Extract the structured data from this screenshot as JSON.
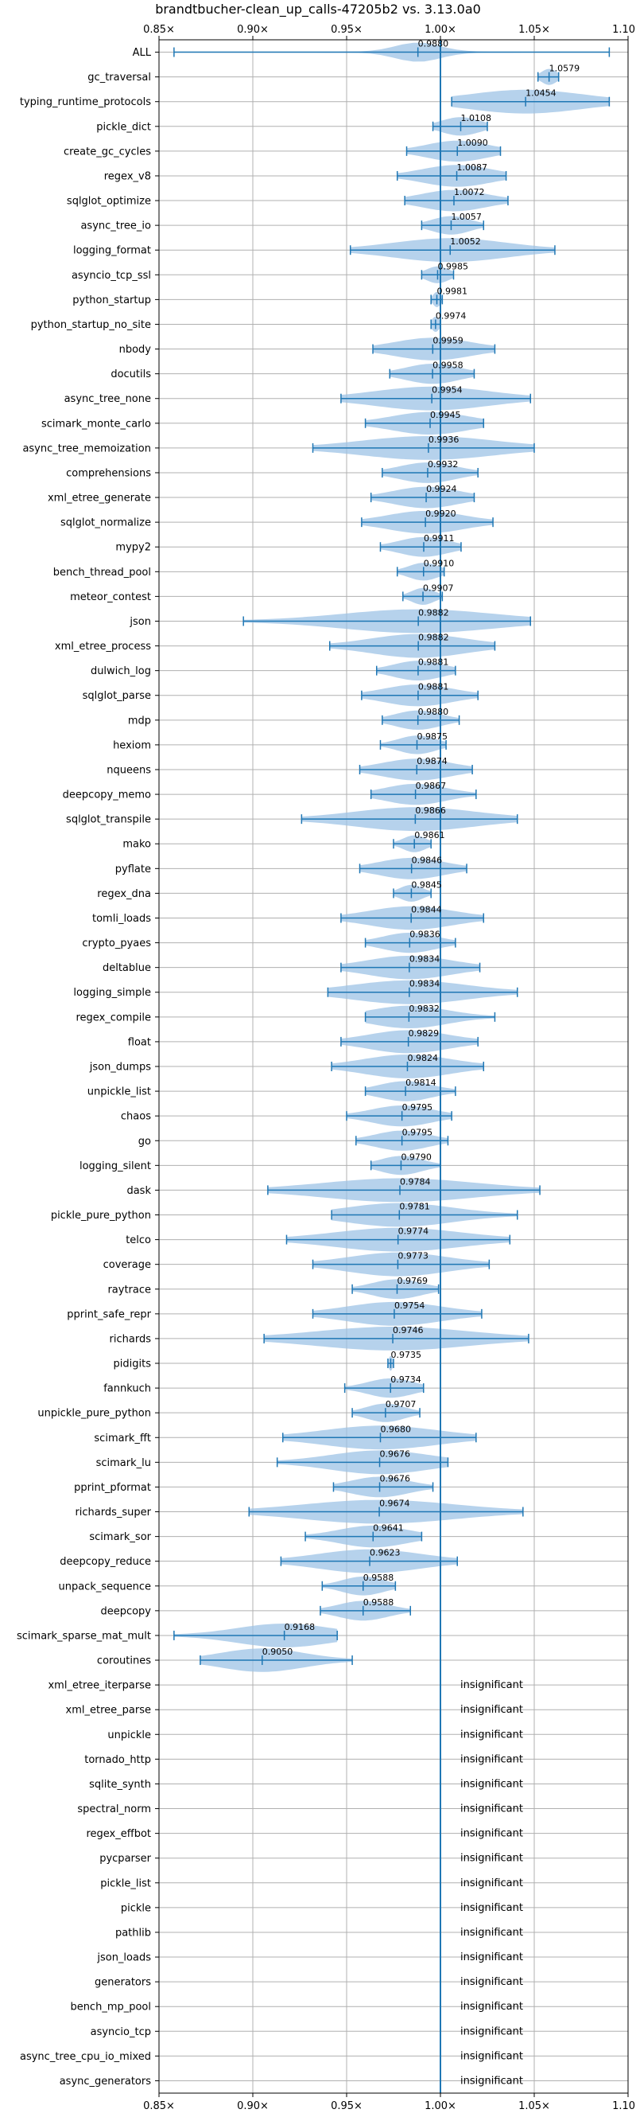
{
  "chart_data": {
    "type": "violin",
    "title": "brandtbucher-clean_up_calls-47205b2 vs. 3.13.0a0",
    "xlim": [
      0.85,
      1.1
    ],
    "xticks": [
      "0.85×",
      "0.90×",
      "0.95×",
      "1.00×",
      "1.05×",
      "1.10×"
    ],
    "xtick_values": [
      0.85,
      0.9,
      0.95,
      1.0,
      1.05,
      1.1
    ],
    "reference_line": 1.0,
    "grid": true,
    "colors": {
      "violin": "#9ec3e6",
      "whisker": "#1f77b4",
      "reference": "#1f77b4",
      "grid": "#b0b0b0"
    },
    "insignificant_label": "insignificant",
    "benchmarks": [
      {
        "name": "ALL",
        "value": 0.988,
        "label": "0.9880",
        "min": 0.858,
        "max": 1.09,
        "spread": 0.012
      },
      {
        "name": "gc_traversal",
        "value": 1.0579,
        "label": "1.0579",
        "min": 1.052,
        "max": 1.063,
        "spread": 0.004
      },
      {
        "name": "typing_runtime_protocols",
        "value": 1.0454,
        "label": "1.0454",
        "min": 1.006,
        "max": 1.09,
        "spread": 0.03
      },
      {
        "name": "pickle_dict",
        "value": 1.0108,
        "label": "1.0108",
        "min": 0.996,
        "max": 1.025,
        "spread": 0.01
      },
      {
        "name": "create_gc_cycles",
        "value": 1.009,
        "label": "1.0090",
        "min": 0.982,
        "max": 1.032,
        "spread": 0.016
      },
      {
        "name": "regex_v8",
        "value": 1.0087,
        "label": "1.0087",
        "min": 0.977,
        "max": 1.035,
        "spread": 0.018
      },
      {
        "name": "sqlglot_optimize",
        "value": 1.0072,
        "label": "1.0072",
        "min": 0.981,
        "max": 1.036,
        "spread": 0.017
      },
      {
        "name": "async_tree_io",
        "value": 1.0057,
        "label": "1.0057",
        "min": 0.99,
        "max": 1.023,
        "spread": 0.01
      },
      {
        "name": "logging_format",
        "value": 1.0052,
        "label": "1.0052",
        "min": 0.952,
        "max": 1.061,
        "spread": 0.03
      },
      {
        "name": "asyncio_tcp_ssl",
        "value": 0.9985,
        "label": "0.9985",
        "min": 0.99,
        "max": 1.007,
        "spread": 0.006
      },
      {
        "name": "python_startup",
        "value": 0.9981,
        "label": "0.9981",
        "min": 0.995,
        "max": 1.001,
        "spread": 0.002
      },
      {
        "name": "python_startup_no_site",
        "value": 0.9974,
        "label": "0.9974",
        "min": 0.995,
        "max": 1.0,
        "spread": 0.002
      },
      {
        "name": "nbody",
        "value": 0.9959,
        "label": "0.9959",
        "min": 0.964,
        "max": 1.029,
        "spread": 0.02
      },
      {
        "name": "docutils",
        "value": 0.9958,
        "label": "0.9958",
        "min": 0.973,
        "max": 1.018,
        "spread": 0.014
      },
      {
        "name": "async_tree_none",
        "value": 0.9954,
        "label": "0.9954",
        "min": 0.947,
        "max": 1.048,
        "spread": 0.03
      },
      {
        "name": "scimark_monte_carlo",
        "value": 0.9945,
        "label": "0.9945",
        "min": 0.96,
        "max": 1.023,
        "spread": 0.02
      },
      {
        "name": "async_tree_memoization",
        "value": 0.9936,
        "label": "0.9936",
        "min": 0.932,
        "max": 1.05,
        "spread": 0.035
      },
      {
        "name": "comprehensions",
        "value": 0.9932,
        "label": "0.9932",
        "min": 0.969,
        "max": 1.02,
        "spread": 0.015
      },
      {
        "name": "xml_etree_generate",
        "value": 0.9924,
        "label": "0.9924",
        "min": 0.963,
        "max": 1.018,
        "spread": 0.017
      },
      {
        "name": "sqlglot_normalize",
        "value": 0.992,
        "label": "0.9920",
        "min": 0.958,
        "max": 1.028,
        "spread": 0.02
      },
      {
        "name": "mypy2",
        "value": 0.9911,
        "label": "0.9911",
        "min": 0.968,
        "max": 1.011,
        "spread": 0.013
      },
      {
        "name": "bench_thread_pool",
        "value": 0.991,
        "label": "0.9910",
        "min": 0.977,
        "max": 1.002,
        "spread": 0.008
      },
      {
        "name": "meteor_contest",
        "value": 0.9907,
        "label": "0.9907",
        "min": 0.98,
        "max": 1.001,
        "spread": 0.006
      },
      {
        "name": "json",
        "value": 0.9882,
        "label": "0.9882",
        "min": 0.895,
        "max": 1.048,
        "spread": 0.04
      },
      {
        "name": "xml_etree_process",
        "value": 0.9882,
        "label": "0.9882",
        "min": 0.941,
        "max": 1.029,
        "spread": 0.025
      },
      {
        "name": "dulwich_log",
        "value": 0.9881,
        "label": "0.9881",
        "min": 0.966,
        "max": 1.008,
        "spread": 0.013
      },
      {
        "name": "sqlglot_parse",
        "value": 0.9881,
        "label": "0.9881",
        "min": 0.958,
        "max": 1.02,
        "spread": 0.018
      },
      {
        "name": "mdp",
        "value": 0.988,
        "label": "0.9880",
        "min": 0.969,
        "max": 1.01,
        "spread": 0.012
      },
      {
        "name": "hexiom",
        "value": 0.9875,
        "label": "0.9875",
        "min": 0.968,
        "max": 1.003,
        "spread": 0.01
      },
      {
        "name": "nqueens",
        "value": 0.9874,
        "label": "0.9874",
        "min": 0.957,
        "max": 1.017,
        "spread": 0.018
      },
      {
        "name": "deepcopy_memo",
        "value": 0.9867,
        "label": "0.9867",
        "min": 0.963,
        "max": 1.019,
        "spread": 0.016
      },
      {
        "name": "sqlglot_transpile",
        "value": 0.9866,
        "label": "0.9866",
        "min": 0.926,
        "max": 1.041,
        "spread": 0.032
      },
      {
        "name": "mako",
        "value": 0.9861,
        "label": "0.9861",
        "min": 0.975,
        "max": 0.995,
        "spread": 0.006
      },
      {
        "name": "pyflate",
        "value": 0.9846,
        "label": "0.9846",
        "min": 0.957,
        "max": 1.014,
        "spread": 0.017
      },
      {
        "name": "regex_dna",
        "value": 0.9845,
        "label": "0.9845",
        "min": 0.975,
        "max": 0.995,
        "spread": 0.006
      },
      {
        "name": "tomli_loads",
        "value": 0.9844,
        "label": "0.9844",
        "min": 0.947,
        "max": 1.023,
        "spread": 0.022
      },
      {
        "name": "crypto_pyaes",
        "value": 0.9836,
        "label": "0.9836",
        "min": 0.96,
        "max": 1.008,
        "spread": 0.014
      },
      {
        "name": "deltablue",
        "value": 0.9834,
        "label": "0.9834",
        "min": 0.947,
        "max": 1.021,
        "spread": 0.022
      },
      {
        "name": "logging_simple",
        "value": 0.9834,
        "label": "0.9834",
        "min": 0.94,
        "max": 1.041,
        "spread": 0.03
      },
      {
        "name": "regex_compile",
        "value": 0.9832,
        "label": "0.9832",
        "min": 0.96,
        "max": 1.029,
        "spread": 0.02
      },
      {
        "name": "float",
        "value": 0.9829,
        "label": "0.9829",
        "min": 0.947,
        "max": 1.02,
        "spread": 0.021
      },
      {
        "name": "json_dumps",
        "value": 0.9824,
        "label": "0.9824",
        "min": 0.942,
        "max": 1.023,
        "spread": 0.023
      },
      {
        "name": "unpickle_list",
        "value": 0.9814,
        "label": "0.9814",
        "min": 0.96,
        "max": 1.008,
        "spread": 0.014
      },
      {
        "name": "chaos",
        "value": 0.9795,
        "label": "0.9795",
        "min": 0.95,
        "max": 1.006,
        "spread": 0.016
      },
      {
        "name": "go",
        "value": 0.9795,
        "label": "0.9795",
        "min": 0.955,
        "max": 1.004,
        "spread": 0.014
      },
      {
        "name": "logging_silent",
        "value": 0.979,
        "label": "0.9790",
        "min": 0.963,
        "max": 1.0,
        "spread": 0.011
      },
      {
        "name": "dask",
        "value": 0.9784,
        "label": "0.9784",
        "min": 0.908,
        "max": 1.053,
        "spread": 0.04
      },
      {
        "name": "pickle_pure_python",
        "value": 0.9781,
        "label": "0.9781",
        "min": 0.942,
        "max": 1.041,
        "spread": 0.028
      },
      {
        "name": "telco",
        "value": 0.9774,
        "label": "0.9774",
        "min": 0.918,
        "max": 1.037,
        "spread": 0.033
      },
      {
        "name": "coverage",
        "value": 0.9773,
        "label": "0.9773",
        "min": 0.932,
        "max": 1.026,
        "spread": 0.026
      },
      {
        "name": "raytrace",
        "value": 0.9769,
        "label": "0.9769",
        "min": 0.953,
        "max": 0.999,
        "spread": 0.013
      },
      {
        "name": "pprint_safe_repr",
        "value": 0.9754,
        "label": "0.9754",
        "min": 0.932,
        "max": 1.022,
        "spread": 0.025
      },
      {
        "name": "richards",
        "value": 0.9746,
        "label": "0.9746",
        "min": 0.906,
        "max": 1.047,
        "spread": 0.04
      },
      {
        "name": "pidigits",
        "value": 0.9735,
        "label": "0.9735",
        "min": 0.972,
        "max": 0.975,
        "spread": 0.001
      },
      {
        "name": "fannkuch",
        "value": 0.9734,
        "label": "0.9734",
        "min": 0.949,
        "max": 0.991,
        "spread": 0.012
      },
      {
        "name": "unpickle_pure_python",
        "value": 0.9707,
        "label": "0.9707",
        "min": 0.953,
        "max": 0.989,
        "spread": 0.01
      },
      {
        "name": "scimark_fft",
        "value": 0.968,
        "label": "0.9680",
        "min": 0.916,
        "max": 1.019,
        "spread": 0.03
      },
      {
        "name": "scimark_lu",
        "value": 0.9676,
        "label": "0.9676",
        "min": 0.913,
        "max": 1.004,
        "spread": 0.026
      },
      {
        "name": "pprint_pformat",
        "value": 0.9676,
        "label": "0.9676",
        "min": 0.943,
        "max": 0.996,
        "spread": 0.015
      },
      {
        "name": "richards_super",
        "value": 0.9674,
        "label": "0.9674",
        "min": 0.898,
        "max": 1.044,
        "spread": 0.04
      },
      {
        "name": "scimark_sor",
        "value": 0.9641,
        "label": "0.9641",
        "min": 0.928,
        "max": 0.99,
        "spread": 0.018
      },
      {
        "name": "deepcopy_reduce",
        "value": 0.9623,
        "label": "0.9623",
        "min": 0.915,
        "max": 1.009,
        "spread": 0.027
      },
      {
        "name": "unpack_sequence",
        "value": 0.9588,
        "label": "0.9588",
        "min": 0.937,
        "max": 0.976,
        "spread": 0.011
      },
      {
        "name": "deepcopy",
        "value": 0.9588,
        "label": "0.9588",
        "min": 0.936,
        "max": 0.984,
        "spread": 0.013
      },
      {
        "name": "scimark_sparse_mat_mult",
        "value": 0.9168,
        "label": "0.9168",
        "min": 0.858,
        "max": 0.945,
        "spread": 0.025
      },
      {
        "name": "coroutines",
        "value": 0.905,
        "label": "0.9050",
        "min": 0.872,
        "max": 0.953,
        "spread": 0.022
      },
      {
        "name": "xml_etree_iterparse",
        "insignificant": true
      },
      {
        "name": "xml_etree_parse",
        "insignificant": true
      },
      {
        "name": "unpickle",
        "insignificant": true
      },
      {
        "name": "tornado_http",
        "insignificant": true
      },
      {
        "name": "sqlite_synth",
        "insignificant": true
      },
      {
        "name": "spectral_norm",
        "insignificant": true
      },
      {
        "name": "regex_effbot",
        "insignificant": true
      },
      {
        "name": "pycparser",
        "insignificant": true
      },
      {
        "name": "pickle_list",
        "insignificant": true
      },
      {
        "name": "pickle",
        "insignificant": true
      },
      {
        "name": "pathlib",
        "insignificant": true
      },
      {
        "name": "json_loads",
        "insignificant": true
      },
      {
        "name": "generators",
        "insignificant": true
      },
      {
        "name": "bench_mp_pool",
        "insignificant": true
      },
      {
        "name": "asyncio_tcp",
        "insignificant": true
      },
      {
        "name": "async_tree_cpu_io_mixed",
        "insignificant": true
      },
      {
        "name": "async_generators",
        "insignificant": true
      }
    ]
  }
}
